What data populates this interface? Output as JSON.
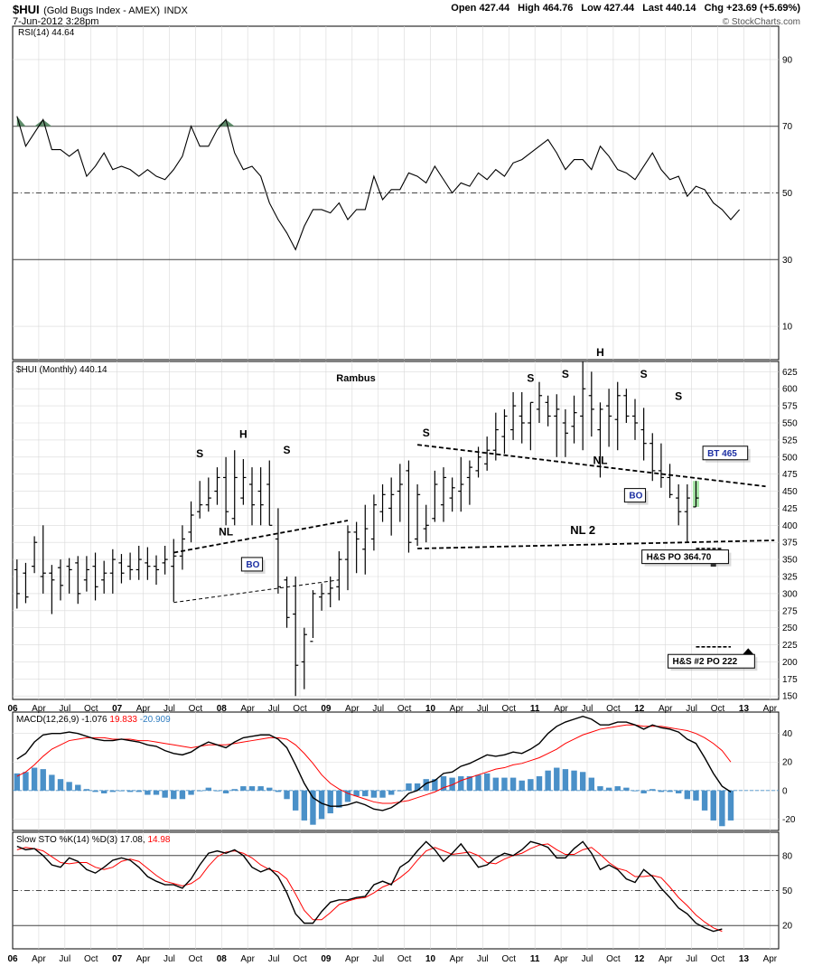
{
  "header": {
    "symbol": "$HUI",
    "name": "(Gold Bugs Index - AMEX)",
    "exchange": "INDX",
    "date": "7-Jun-2012 3:28pm",
    "open_label": "Open",
    "open": "427.44",
    "high_label": "High",
    "high": "464.76",
    "low_label": "Low",
    "low": "427.44",
    "last_label": "Last",
    "last": "440.14",
    "chg_label": "Chg",
    "chg": "+23.69 (+5.69%)",
    "watermark": "© StockCharts.com"
  },
  "colors": {
    "ink": "#000000",
    "grid": "#d9d9d9",
    "signal": "#ff0000",
    "hist": "#4a90c8",
    "box_text": "#1c2fa3",
    "highlight": "#a6e6a6",
    "rsi_fill": "#5e8c6a",
    "signal_value": "#2e7cc0"
  },
  "x_axis_labels": [
    "06",
    "Apr",
    "Jul",
    "Oct",
    "07",
    "Apr",
    "Jul",
    "Oct",
    "08",
    "Apr",
    "Jul",
    "Oct",
    "09",
    "Apr",
    "Jul",
    "Oct",
    "10",
    "Apr",
    "Jul",
    "Oct",
    "11",
    "Apr",
    "Jul",
    "Oct",
    "12",
    "Apr",
    "Jul",
    "Oct",
    "13",
    "Apr"
  ],
  "chart_data": [
    {
      "type": "line",
      "panel": "rsi",
      "label": "RSI(14) 44.64",
      "ylim": [
        0,
        100
      ],
      "ticks": [
        90,
        70,
        50,
        30,
        10
      ],
      "levels": {
        "overbought": 70,
        "mid": 50,
        "oversold": 30
      },
      "values": [
        73,
        64,
        68,
        72,
        63,
        63,
        61,
        63,
        55,
        58,
        62,
        57,
        58,
        57,
        55,
        57,
        55,
        54,
        57,
        61,
        70,
        64,
        64,
        69,
        72,
        62,
        57,
        58,
        55,
        47,
        42,
        38,
        33,
        40,
        45,
        45,
        44,
        47,
        42,
        45,
        45,
        55,
        48,
        51,
        51,
        56,
        55,
        53,
        58,
        54,
        50,
        53,
        52,
        56,
        54,
        57,
        55,
        59,
        60,
        62,
        64,
        66,
        62,
        57,
        60,
        60,
        57,
        64,
        61,
        57,
        56,
        54,
        58,
        62,
        57,
        54,
        55,
        49,
        52,
        51,
        47,
        45,
        42,
        45
      ]
    },
    {
      "type": "ohlc",
      "panel": "price",
      "label": "$HUI (Monthly) 440.14",
      "annotation_title": "Rambus",
      "ylim": [
        145,
        640
      ],
      "ticks": [
        625,
        600,
        575,
        550,
        525,
        500,
        475,
        450,
        425,
        400,
        375,
        350,
        325,
        300,
        275,
        250,
        225,
        200,
        175,
        150
      ],
      "bars": [
        [
          335,
          350,
          278,
          300
        ],
        [
          330,
          345,
          286,
          295
        ],
        [
          340,
          384,
          330,
          375
        ],
        [
          325,
          400,
          300,
          330
        ],
        [
          330,
          342,
          270,
          320
        ],
        [
          338,
          350,
          290,
          312
        ],
        [
          340,
          352,
          300,
          335
        ],
        [
          345,
          355,
          285,
          300
        ],
        [
          320,
          355,
          303,
          335
        ],
        [
          340,
          360,
          290,
          310
        ],
        [
          320,
          348,
          300,
          330
        ],
        [
          330,
          365,
          300,
          350
        ],
        [
          345,
          358,
          315,
          330
        ],
        [
          340,
          360,
          320,
          335
        ],
        [
          335,
          370,
          320,
          350
        ],
        [
          345,
          368,
          320,
          340
        ],
        [
          340,
          356,
          313,
          335
        ],
        [
          345,
          370,
          328,
          350
        ],
        [
          340,
          380,
          288,
          355
        ],
        [
          355,
          400,
          335,
          380
        ],
        [
          390,
          435,
          375,
          415
        ],
        [
          420,
          465,
          410,
          430
        ],
        [
          430,
          470,
          420,
          440
        ],
        [
          450,
          485,
          430,
          470
        ],
        [
          470,
          500,
          400,
          420
        ],
        [
          410,
          510,
          400,
          470
        ],
        [
          440,
          497,
          430,
          470
        ],
        [
          460,
          485,
          400,
          430
        ],
        [
          450,
          485,
          400,
          430
        ],
        [
          460,
          495,
          400,
          400
        ],
        [
          380,
          425,
          300,
          310
        ],
        [
          320,
          325,
          250,
          265
        ],
        [
          270,
          325,
          150,
          195
        ],
        [
          200,
          250,
          160,
          240
        ],
        [
          230,
          305,
          235,
          300
        ],
        [
          295,
          315,
          275,
          300
        ],
        [
          300,
          325,
          280,
          308
        ],
        [
          310,
          362,
          290,
          350
        ],
        [
          350,
          400,
          305,
          390
        ],
        [
          390,
          405,
          330,
          380
        ],
        [
          365,
          430,
          328,
          395
        ],
        [
          380,
          445,
          363,
          430
        ],
        [
          420,
          460,
          405,
          445
        ],
        [
          425,
          470,
          385,
          445
        ],
        [
          450,
          490,
          405,
          460
        ],
        [
          480,
          495,
          360,
          375
        ],
        [
          380,
          460,
          370,
          445
        ],
        [
          395,
          430,
          375,
          400
        ],
        [
          410,
          480,
          405,
          460
        ],
        [
          430,
          485,
          405,
          470
        ],
        [
          440,
          470,
          420,
          455
        ],
        [
          450,
          500,
          420,
          460
        ],
        [
          470,
          495,
          430,
          485
        ],
        [
          480,
          515,
          470,
          500
        ],
        [
          490,
          530,
          480,
          510
        ],
        [
          510,
          565,
          495,
          540
        ],
        [
          530,
          570,
          505,
          560
        ],
        [
          540,
          595,
          525,
          575
        ],
        [
          560,
          595,
          520,
          550
        ],
        [
          550,
          580,
          510,
          580
        ],
        [
          570,
          610,
          550,
          590
        ],
        [
          580,
          590,
          545,
          560
        ],
        [
          560,
          592,
          500,
          570
        ],
        [
          550,
          570,
          500,
          535
        ],
        [
          545,
          590,
          520,
          565
        ],
        [
          560,
          640,
          510,
          600
        ],
        [
          590,
          625,
          530,
          570
        ],
        [
          540,
          580,
          470,
          570
        ],
        [
          575,
          600,
          515,
          560
        ],
        [
          555,
          610,
          510,
          590
        ],
        [
          590,
          600,
          550,
          560
        ],
        [
          560,
          585,
          525,
          550
        ],
        [
          540,
          572,
          495,
          520
        ],
        [
          520,
          535,
          465,
          480
        ],
        [
          480,
          520,
          455,
          470
        ],
        [
          470,
          490,
          440,
          445
        ],
        [
          440,
          460,
          400,
          420
        ],
        [
          420,
          460,
          375,
          440
        ],
        [
          427,
          465,
          427,
          440
        ]
      ],
      "highlight_bar_index": 78,
      "labels": [
        {
          "text": "S",
          "bar": 21,
          "value": 500
        },
        {
          "text": "H",
          "bar": 26,
          "value": 528
        },
        {
          "text": "S",
          "bar": 31,
          "value": 505
        },
        {
          "text": "NL",
          "bar": 24,
          "value": 385
        },
        {
          "text": "S",
          "bar": 47,
          "value": 530
        },
        {
          "text": "S",
          "bar": 59,
          "value": 610
        },
        {
          "text": "S",
          "bar": 63,
          "value": 616
        },
        {
          "text": "H",
          "bar": 67,
          "value": 648
        },
        {
          "text": "S",
          "bar": 72,
          "value": 616
        },
        {
          "text": "S",
          "bar": 76,
          "value": 584
        },
        {
          "text": "S",
          "bar": 80,
          "value": 500
        },
        {
          "text": "NL",
          "bar": 67,
          "value": 490
        },
        {
          "text": "NL 2",
          "bar": 65,
          "value": 387
        }
      ],
      "boxes": [
        {
          "text": "BO",
          "bar": 26,
          "value": 337,
          "color": "blue"
        },
        {
          "text": "BO",
          "bar": 70,
          "value": 438,
          "color": "blue"
        },
        {
          "text": "BT 465",
          "bar": 79,
          "value": 500,
          "color": "blue"
        },
        {
          "text": "H&S PO 364.70",
          "bar": 72,
          "value": 348,
          "color": "black"
        },
        {
          "text": "H&S #2 PO 222",
          "bar": 75,
          "value": 195,
          "color": "black"
        }
      ],
      "price_objectives": [
        364.7,
        222
      ]
    },
    {
      "type": "line",
      "panel": "macd",
      "label": "MACD(12,26,9)",
      "macd_value": "-1.076",
      "signal_value": "19.833",
      "hist_value": "-20.909",
      "ylim": [
        -28,
        55
      ],
      "ticks": [
        40,
        20,
        0,
        -20
      ],
      "macd": [
        22,
        26,
        34,
        39,
        40,
        40,
        41,
        40,
        38,
        36,
        35,
        35,
        36,
        35,
        34,
        32,
        31,
        28,
        26,
        25,
        27,
        31,
        34,
        32,
        30,
        34,
        37,
        38,
        39,
        39,
        36,
        30,
        18,
        5,
        -5,
        -9,
        -11,
        -11,
        -10,
        -8,
        -10,
        -13,
        -14,
        -12,
        -8,
        -2,
        0,
        5,
        7,
        12,
        13,
        17,
        19,
        22,
        25,
        24,
        25,
        27,
        26,
        29,
        33,
        40,
        45,
        48,
        50,
        52,
        50,
        46,
        46,
        48,
        48,
        46,
        43,
        46,
        44,
        43,
        41,
        36,
        33,
        23,
        12,
        3,
        -1
      ],
      "signal": [
        10,
        13,
        18,
        24,
        29,
        32,
        35,
        36,
        37,
        37,
        37,
        36,
        36,
        36,
        35,
        35,
        34,
        33,
        32,
        31,
        30,
        31,
        32,
        32,
        32,
        33,
        34,
        35,
        36,
        37,
        37,
        36,
        32,
        26,
        19,
        11,
        5,
        1,
        -2,
        -4,
        -6,
        -8,
        -9,
        -9,
        -8,
        -7,
        -5,
        -3,
        -1,
        2,
        4,
        7,
        9,
        11,
        13,
        15,
        16,
        18,
        19,
        21,
        23,
        26,
        29,
        33,
        36,
        39,
        41,
        43,
        44,
        45,
        46,
        46,
        45,
        45,
        45,
        44,
        43,
        42,
        40,
        37,
        33,
        28,
        20
      ],
      "hist": [
        12,
        13,
        16,
        15,
        11,
        8,
        6,
        4,
        1,
        -1,
        -2,
        -1,
        0,
        -1,
        -1,
        -3,
        -3,
        -5,
        -6,
        -6,
        -3,
        0,
        2,
        0,
        -2,
        1,
        3,
        3,
        3,
        2,
        -1,
        -6,
        -14,
        -21,
        -24,
        -20,
        -16,
        -12,
        -8,
        -4,
        -4,
        -5,
        -5,
        -3,
        0,
        5,
        5,
        8,
        8,
        10,
        9,
        10,
        10,
        11,
        12,
        9,
        9,
        9,
        7,
        8,
        10,
        14,
        16,
        15,
        14,
        13,
        9,
        3,
        2,
        3,
        2,
        0,
        -2,
        1,
        -1,
        -1,
        -2,
        -6,
        -7,
        -14,
        -21,
        -25,
        -21
      ]
    },
    {
      "type": "line",
      "panel": "slowsto",
      "label": "Slow STO %K(14) %D(3)",
      "k_value": "17.08",
      "d_value": "14.98",
      "ylim": [
        0,
        100
      ],
      "ticks": [
        80,
        50,
        20
      ],
      "levels": {
        "overbought": 80,
        "mid": 50,
        "oversold": 20
      },
      "k": [
        88,
        85,
        86,
        80,
        72,
        70,
        78,
        75,
        68,
        65,
        70,
        76,
        78,
        76,
        70,
        62,
        58,
        55,
        55,
        52,
        60,
        72,
        82,
        84,
        82,
        85,
        80,
        70,
        66,
        69,
        62,
        48,
        30,
        22,
        22,
        32,
        40,
        42,
        42,
        44,
        45,
        55,
        58,
        55,
        70,
        75,
        84,
        92,
        85,
        75,
        82,
        90,
        80,
        70,
        72,
        78,
        82,
        80,
        85,
        92,
        90,
        87,
        78,
        78,
        86,
        92,
        82,
        68,
        72,
        68,
        60,
        57,
        68,
        62,
        52,
        44,
        35,
        30,
        22,
        18,
        15,
        17
      ],
      "d": [
        85,
        87,
        86,
        84,
        79,
        74,
        73,
        74,
        74,
        70,
        68,
        70,
        75,
        77,
        75,
        69,
        63,
        58,
        56,
        54,
        56,
        61,
        71,
        79,
        83,
        84,
        82,
        78,
        72,
        68,
        66,
        60,
        47,
        33,
        25,
        25,
        31,
        38,
        41,
        43,
        44,
        48,
        53,
        56,
        61,
        67,
        76,
        84,
        87,
        84,
        81,
        82,
        83,
        80,
        74,
        73,
        77,
        80,
        82,
        86,
        89,
        90,
        85,
        81,
        81,
        85,
        87,
        81,
        74,
        69,
        67,
        62,
        62,
        63,
        61,
        53,
        44,
        37,
        29,
        23,
        18,
        15
      ]
    }
  ]
}
